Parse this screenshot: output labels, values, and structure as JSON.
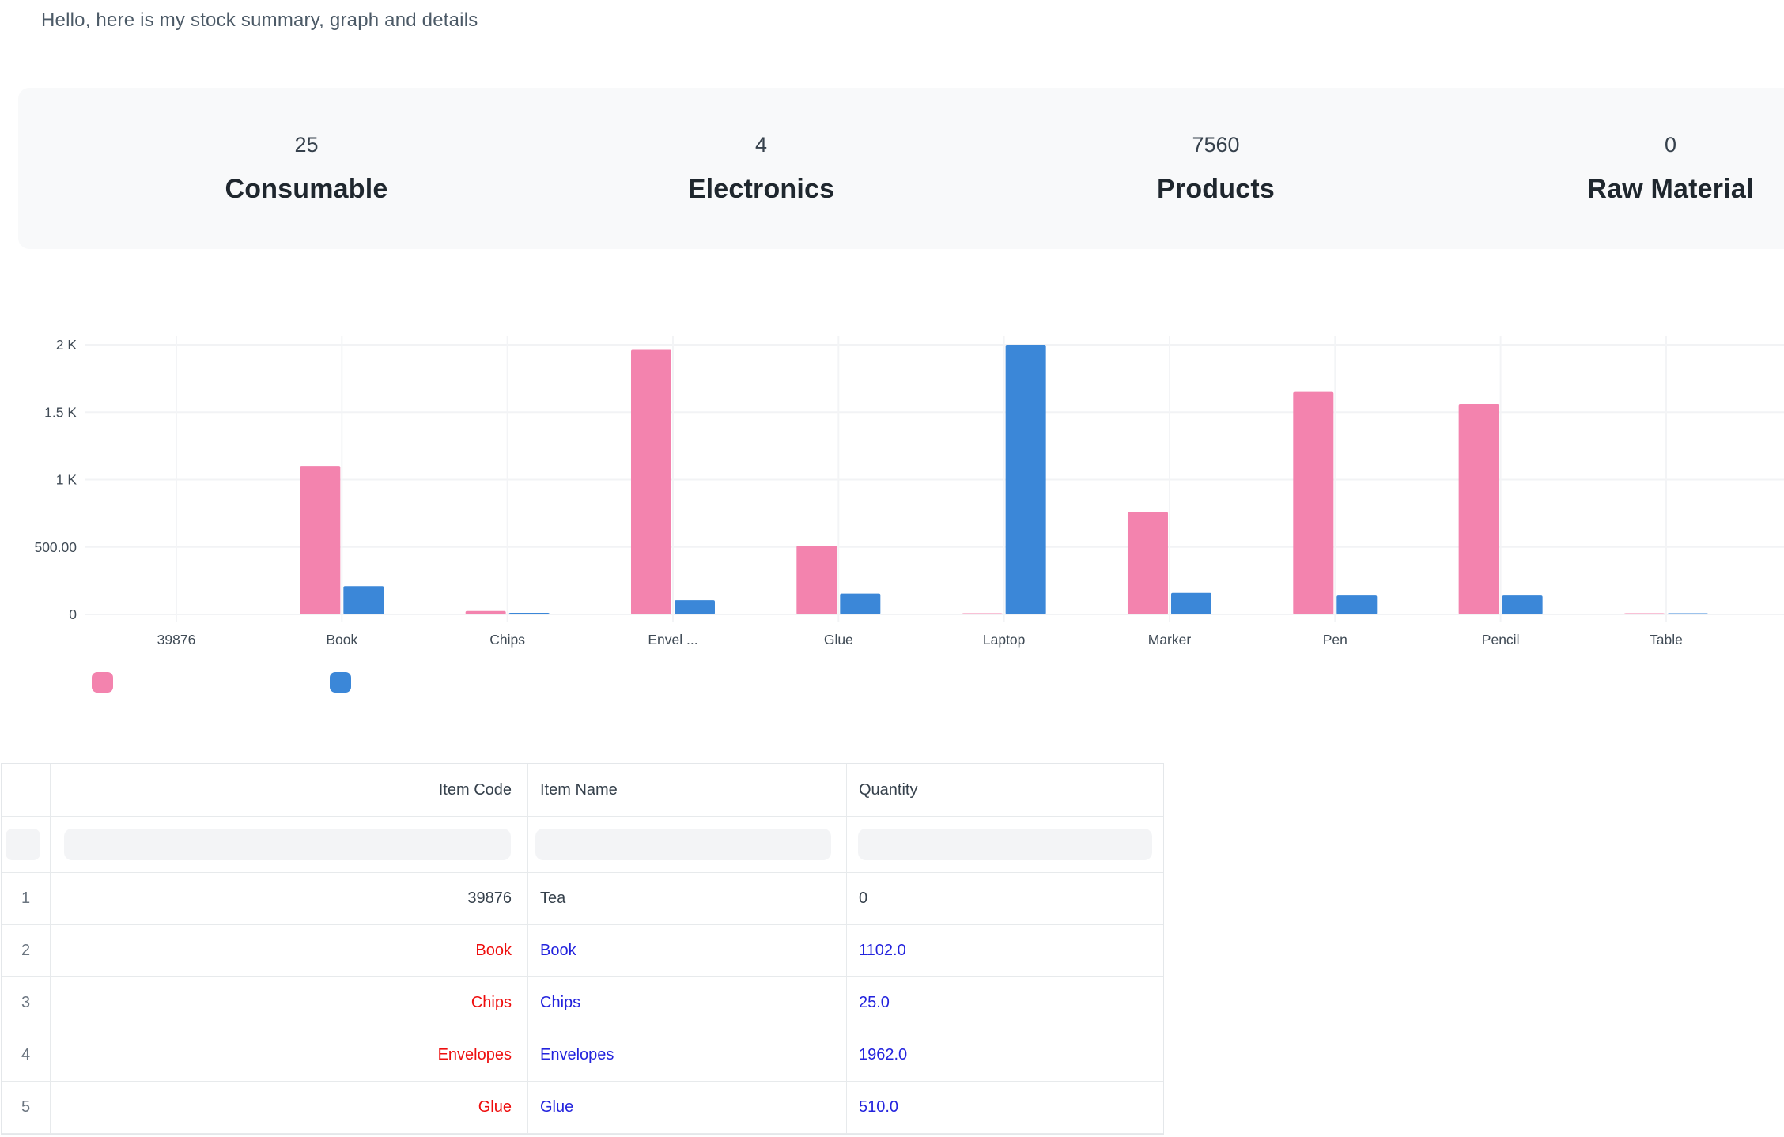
{
  "greeting": "Hello, here is my stock summary, graph and details",
  "summary_cards": [
    {
      "value": "25",
      "label": "Consumable"
    },
    {
      "value": "4",
      "label": "Electronics"
    },
    {
      "value": "7560",
      "label": "Products"
    },
    {
      "value": "0",
      "label": "Raw Material"
    }
  ],
  "chart_data": {
    "type": "bar",
    "title": "",
    "xlabel": "",
    "ylabel": "",
    "categories": [
      "39876",
      "Book",
      "Chips",
      "Envel ...",
      "Glue",
      "Laptop",
      "Marker",
      "Pen",
      "Pencil",
      "Table"
    ],
    "series": [
      {
        "name": "",
        "color": "#f383ae",
        "values": [
          0,
          1102,
          25,
          1962,
          510,
          5,
          760,
          1650,
          1560,
          3
        ]
      },
      {
        "name": "",
        "color": "#3b87d8",
        "values": [
          0,
          210,
          12,
          105,
          155,
          2000,
          160,
          140,
          140,
          8
        ]
      }
    ],
    "ylim": [
      0,
      2000
    ],
    "y_ticks": [
      {
        "value": 2000,
        "label": "2 K"
      },
      {
        "value": 1500,
        "label": "1.5 K"
      },
      {
        "value": 1000,
        "label": "1 K"
      },
      {
        "value": 500,
        "label": "500.00"
      },
      {
        "value": 0,
        "label": "0"
      }
    ],
    "grid": true,
    "legend_position": "bottom-left"
  },
  "colors": {
    "pink_series": "#f383ae",
    "blue_series": "#3b87d8",
    "red_text": "#ee0d0d",
    "blue_link": "#2323dd",
    "dark_text": "#36414c"
  },
  "table": {
    "columns": [
      {
        "label": "",
        "align": "center"
      },
      {
        "label": "Item Code",
        "align": "right"
      },
      {
        "label": "Item Name",
        "align": "left"
      },
      {
        "label": "Quantity",
        "align": "left"
      }
    ],
    "filter_placeholders": [
      "",
      "",
      "",
      ""
    ],
    "rows": [
      {
        "num": "1",
        "item_code": "39876",
        "item_name": "Tea",
        "quantity": "0",
        "code_style": "dark",
        "name_style": "dark",
        "qty_style": "dark"
      },
      {
        "num": "2",
        "item_code": "Book",
        "item_name": "Book",
        "quantity": "1102.0",
        "code_style": "red",
        "name_style": "link",
        "qty_style": "link"
      },
      {
        "num": "3",
        "item_code": "Chips",
        "item_name": "Chips",
        "quantity": "25.0",
        "code_style": "red",
        "name_style": "link",
        "qty_style": "link"
      },
      {
        "num": "4",
        "item_code": "Envelopes",
        "item_name": "Envelopes",
        "quantity": "1962.0",
        "code_style": "red",
        "name_style": "link",
        "qty_style": "link"
      },
      {
        "num": "5",
        "item_code": "Glue",
        "item_name": "Glue",
        "quantity": "510.0",
        "code_style": "red",
        "name_style": "link",
        "qty_style": "link"
      }
    ]
  }
}
